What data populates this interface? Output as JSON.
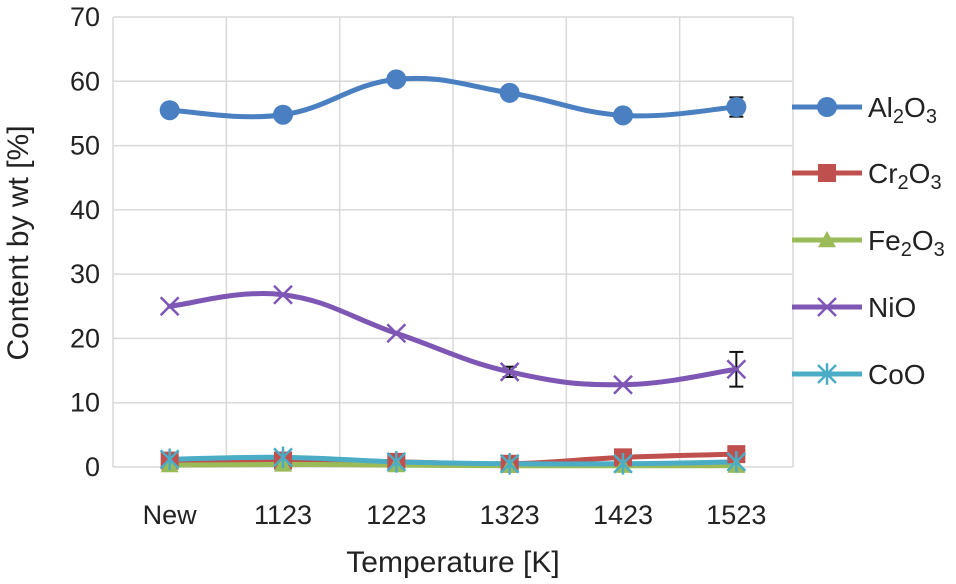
{
  "chart_data": {
    "type": "line",
    "title": "",
    "xlabel": "Temperature [K]",
    "ylabel": "Content by wt [%]",
    "categories": [
      "New",
      "1123",
      "1223",
      "1323",
      "1423",
      "1523"
    ],
    "ylim": [
      0,
      70
    ],
    "yticks": [
      0,
      10,
      20,
      30,
      40,
      50,
      60,
      70
    ],
    "grid": true,
    "legend_position": "right",
    "series": [
      {
        "name": "Al2O3",
        "label_parts": [
          [
            "Al",
            ""
          ],
          [
            "2",
            "sub"
          ],
          [
            "O",
            ""
          ],
          [
            "3",
            "sub"
          ]
        ],
        "color": "#4a7fc1",
        "marker": "circle",
        "values": [
          55.5,
          54.8,
          60.3,
          58.2,
          54.7,
          56.0
        ],
        "errors": [
          0,
          0,
          0,
          0,
          0,
          1.5
        ]
      },
      {
        "name": "Cr2O3",
        "label_parts": [
          [
            "Cr",
            ""
          ],
          [
            "2",
            "sub"
          ],
          [
            "O",
            ""
          ],
          [
            "3",
            "sub"
          ]
        ],
        "color": "#c0504d",
        "marker": "square",
        "values": [
          1.0,
          1.0,
          0.8,
          0.5,
          1.5,
          2.0
        ],
        "errors": [
          0,
          0,
          0,
          0,
          0,
          0
        ]
      },
      {
        "name": "Fe2O3",
        "label_parts": [
          [
            "Fe",
            ""
          ],
          [
            "2",
            "sub"
          ],
          [
            "O",
            ""
          ],
          [
            "3",
            "sub"
          ]
        ],
        "color": "#9bbb59",
        "marker": "triangle",
        "values": [
          0.3,
          0.4,
          0.3,
          0.2,
          0.2,
          0.2
        ],
        "errors": [
          0,
          0,
          0,
          0,
          0,
          0
        ]
      },
      {
        "name": "NiO",
        "label_parts": [
          [
            "NiO",
            ""
          ]
        ],
        "color": "#7e57b5",
        "marker": "x",
        "values": [
          25.0,
          26.8,
          20.8,
          14.8,
          12.8,
          15.2
        ],
        "errors": [
          0,
          0,
          0,
          0.8,
          0,
          2.7
        ]
      },
      {
        "name": "CoO",
        "label_parts": [
          [
            "CoO",
            ""
          ]
        ],
        "color": "#4bacc6",
        "marker": "star",
        "values": [
          1.2,
          1.5,
          0.8,
          0.5,
          0.5,
          0.8
        ],
        "errors": [
          0,
          0,
          0,
          0,
          0,
          0
        ]
      }
    ]
  }
}
